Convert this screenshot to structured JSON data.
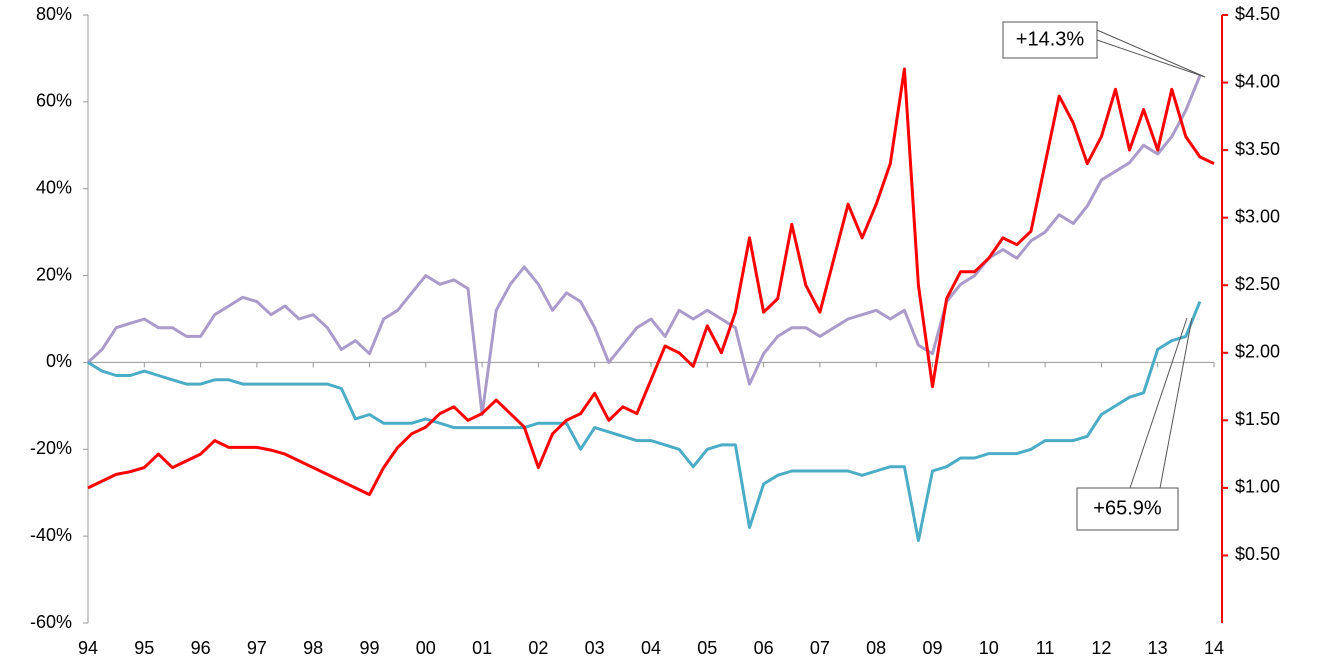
{
  "chart_data": {
    "type": "line",
    "x": [
      1994,
      1994.25,
      1994.5,
      1994.75,
      1995,
      1995.25,
      1995.5,
      1995.75,
      1996,
      1996.25,
      1996.5,
      1996.75,
      1997,
      1997.25,
      1997.5,
      1997.75,
      1998,
      1998.25,
      1998.5,
      1998.75,
      1999,
      1999.25,
      1999.5,
      1999.75,
      2000,
      2000.25,
      2000.5,
      2000.75,
      2001,
      2001.25,
      2001.5,
      2001.75,
      2002,
      2002.25,
      2002.5,
      2002.75,
      2003,
      2003.25,
      2003.5,
      2003.75,
      2004,
      2004.25,
      2004.5,
      2004.75,
      2005,
      2005.25,
      2005.5,
      2005.75,
      2006,
      2006.25,
      2006.5,
      2006.75,
      2007,
      2007.25,
      2007.5,
      2007.75,
      2008,
      2008.25,
      2008.5,
      2008.75,
      2009,
      2009.25,
      2009.5,
      2009.75,
      2010,
      2010.25,
      2010.5,
      2010.75,
      2011,
      2011.25,
      2011.5,
      2011.75,
      2012,
      2012.25,
      2012.5,
      2012.75,
      2013,
      2013.25,
      2013.5,
      2013.75,
      2014
    ],
    "series": [
      {
        "color": "#a99ccb",
        "values": [
          0,
          3,
          8,
          9,
          10,
          8,
          8,
          6,
          6,
          11,
          13,
          15,
          14,
          11,
          13,
          10,
          11,
          8,
          3,
          5,
          2,
          10,
          12,
          16,
          20,
          18,
          19,
          17,
          -12,
          12,
          18,
          22,
          18,
          12,
          16,
          14,
          8,
          0,
          4,
          8,
          10,
          6,
          12,
          10,
          12,
          10,
          8,
          -5,
          2,
          6,
          8,
          8,
          6,
          8,
          10,
          11,
          12,
          10,
          12,
          4,
          2,
          14,
          18,
          20,
          24,
          26,
          24,
          28,
          30,
          34,
          32,
          36,
          42,
          44,
          46,
          50,
          48,
          52,
          58,
          66,
          null
        ]
      },
      {
        "color": "#4bacc6",
        "values": [
          0,
          -2,
          -3,
          -3,
          -2,
          -3,
          -4,
          -5,
          -5,
          -4,
          -4,
          -5,
          -5,
          -5,
          -5,
          -5,
          -5,
          -5,
          -6,
          -13,
          -12,
          -14,
          -14,
          -14,
          -13,
          -14,
          -15,
          -15,
          -15,
          -15,
          -15,
          -15,
          -14,
          -14,
          -14,
          -20,
          -15,
          -16,
          -17,
          -18,
          -18,
          -19,
          -20,
          -24,
          -20,
          -19,
          -19,
          -38,
          -28,
          -26,
          -25,
          -25,
          -25,
          -25,
          -25,
          -26,
          -25,
          -24,
          -24,
          -41,
          -25,
          -24,
          -22,
          -22,
          -21,
          -21,
          -21,
          -20,
          -18,
          -18,
          -18,
          -17,
          -12,
          -10,
          -8,
          -7,
          3,
          5,
          6,
          14,
          null
        ]
      },
      {
        "color": "#ff0000",
        "axis": "y2",
        "values": [
          1.0,
          1.05,
          1.1,
          1.12,
          1.15,
          1.25,
          1.15,
          1.2,
          1.25,
          1.35,
          1.3,
          1.3,
          1.3,
          1.28,
          1.25,
          1.2,
          1.15,
          1.1,
          1.05,
          1.0,
          0.95,
          1.15,
          1.3,
          1.4,
          1.45,
          1.55,
          1.6,
          1.5,
          1.55,
          1.65,
          1.55,
          1.45,
          1.15,
          1.4,
          1.5,
          1.55,
          1.7,
          1.5,
          1.6,
          1.55,
          1.8,
          2.05,
          2.0,
          1.9,
          2.2,
          2.0,
          2.3,
          2.85,
          2.3,
          2.4,
          2.95,
          2.5,
          2.3,
          2.7,
          3.1,
          2.85,
          3.1,
          3.4,
          4.1,
          2.5,
          1.75,
          2.4,
          2.6,
          2.6,
          2.7,
          2.85,
          2.8,
          2.9,
          3.4,
          3.9,
          3.7,
          3.4,
          3.6,
          3.95,
          3.5,
          3.8,
          3.5,
          3.95,
          3.6,
          3.45,
          3.4
        ]
      }
    ],
    "xlim": [
      1994,
      2014
    ],
    "xticks": [
      {
        "value": 1994,
        "label": "94"
      },
      {
        "value": 1995,
        "label": "95"
      },
      {
        "value": 1996,
        "label": "96"
      },
      {
        "value": 1997,
        "label": "97"
      },
      {
        "value": 1998,
        "label": "98"
      },
      {
        "value": 1999,
        "label": "99"
      },
      {
        "value": 2000,
        "label": "00"
      },
      {
        "value": 2001,
        "label": "01"
      },
      {
        "value": 2002,
        "label": "02"
      },
      {
        "value": 2003,
        "label": "03"
      },
      {
        "value": 2004,
        "label": "04"
      },
      {
        "value": 2005,
        "label": "05"
      },
      {
        "value": 2006,
        "label": "06"
      },
      {
        "value": 2007,
        "label": "07"
      },
      {
        "value": 2008,
        "label": "08"
      },
      {
        "value": 2009,
        "label": "09"
      },
      {
        "value": 2010,
        "label": "10"
      },
      {
        "value": 2011,
        "label": "11"
      },
      {
        "value": 2012,
        "label": "12"
      },
      {
        "value": 2013,
        "label": "13"
      },
      {
        "value": 2014,
        "label": "14"
      }
    ],
    "ylim": [
      -60,
      80
    ],
    "yticks": [
      {
        "value": -60,
        "label": "-60%"
      },
      {
        "value": -40,
        "label": "-40%"
      },
      {
        "value": -20,
        "label": "-20%"
      },
      {
        "value": 0,
        "label": "0%"
      },
      {
        "value": 20,
        "label": "20%"
      },
      {
        "value": 40,
        "label": "40%"
      },
      {
        "value": 60,
        "label": "60%"
      },
      {
        "value": 80,
        "label": "80%"
      }
    ],
    "y2lim": [
      0,
      4.5
    ],
    "y2ticks": [
      {
        "value": 0.5,
        "label": "$0.50"
      },
      {
        "value": 1,
        "label": "$1.00"
      },
      {
        "value": 1.5,
        "label": "$1.50"
      },
      {
        "value": 2,
        "label": "$2.00"
      },
      {
        "value": 2.5,
        "label": "$2.50"
      },
      {
        "value": 3,
        "label": "$3.00"
      },
      {
        "value": 3.5,
        "label": "$3.50"
      },
      {
        "value": 4,
        "label": "$4.00"
      },
      {
        "value": 4.5,
        "label": "$4.50"
      }
    ],
    "y2color": "#ff0000",
    "annotations": [
      {
        "text": "+14.3%"
      },
      {
        "text": "+65.9%"
      }
    ]
  }
}
